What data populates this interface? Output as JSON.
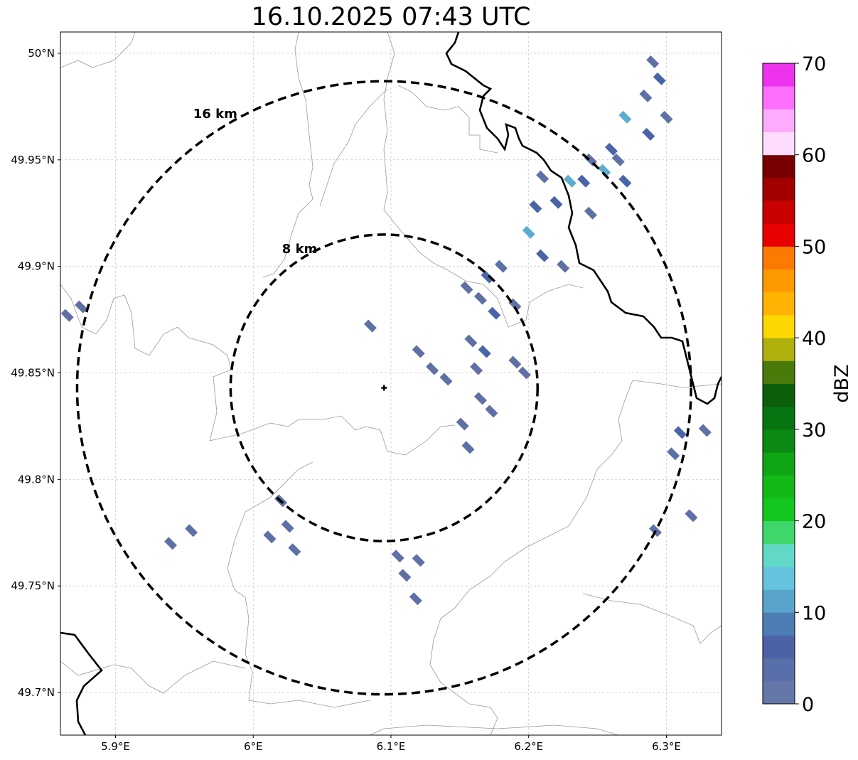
{
  "title": "16.10.2025 07:43 UTC",
  "map": {
    "lon_range": [
      5.86,
      6.34
    ],
    "lat_range": [
      49.68,
      50.01
    ],
    "lat_ticks": [
      {
        "value": 50.0,
        "label": "50°N"
      },
      {
        "value": 49.95,
        "label": "49.95°N"
      },
      {
        "value": 49.9,
        "label": "49.9°N"
      },
      {
        "value": 49.85,
        "label": "49.85°N"
      },
      {
        "value": 49.8,
        "label": "49.8°N"
      },
      {
        "value": 49.75,
        "label": "49.75°N"
      },
      {
        "value": 49.7,
        "label": "49.7°N"
      }
    ],
    "lon_ticks": [
      {
        "value": 5.9,
        "label": "5.9°E"
      },
      {
        "value": 6.0,
        "label": "6°E"
      },
      {
        "value": 6.1,
        "label": "6.1°E"
      },
      {
        "value": 6.2,
        "label": "6.2°E"
      },
      {
        "value": 6.3,
        "label": "6.3°E"
      }
    ],
    "grid": true,
    "center": {
      "lon": 6.095,
      "lat": 49.843
    },
    "range_rings": [
      {
        "radius_km": 8,
        "label": "8 km"
      },
      {
        "radius_km": 16,
        "label": "16 km"
      }
    ],
    "colors": {
      "border": "#000000",
      "admin": "#999999",
      "grid": "#bbbbbb",
      "echo_low": "#5f70a5",
      "echo_mid": "#4a64a8",
      "echo_high": "#5aaed0"
    }
  },
  "echoes": [
    {
      "lon": 6.29,
      "lat": 49.996,
      "level": 1
    },
    {
      "lon": 6.295,
      "lat": 49.988,
      "level": 2
    },
    {
      "lon": 6.285,
      "lat": 49.98,
      "level": 1
    },
    {
      "lon": 6.3,
      "lat": 49.97,
      "level": 1
    },
    {
      "lon": 6.287,
      "lat": 49.962,
      "level": 2
    },
    {
      "lon": 6.27,
      "lat": 49.97,
      "level": 3
    },
    {
      "lon": 6.26,
      "lat": 49.955,
      "level": 2
    },
    {
      "lon": 6.255,
      "lat": 49.945,
      "level": 3
    },
    {
      "lon": 6.245,
      "lat": 49.95,
      "level": 1
    },
    {
      "lon": 6.24,
      "lat": 49.94,
      "level": 2
    },
    {
      "lon": 6.23,
      "lat": 49.94,
      "level": 3
    },
    {
      "lon": 6.22,
      "lat": 49.93,
      "level": 2
    },
    {
      "lon": 6.21,
      "lat": 49.942,
      "level": 1
    },
    {
      "lon": 6.205,
      "lat": 49.928,
      "level": 2
    },
    {
      "lon": 6.2,
      "lat": 49.916,
      "level": 3
    },
    {
      "lon": 6.21,
      "lat": 49.905,
      "level": 2
    },
    {
      "lon": 6.225,
      "lat": 49.9,
      "level": 1
    },
    {
      "lon": 6.245,
      "lat": 49.925,
      "level": 1
    },
    {
      "lon": 6.265,
      "lat": 49.95,
      "level": 1
    },
    {
      "lon": 6.27,
      "lat": 49.94,
      "level": 2
    },
    {
      "lon": 6.18,
      "lat": 49.9,
      "level": 1
    },
    {
      "lon": 6.17,
      "lat": 49.895,
      "level": 2
    },
    {
      "lon": 6.165,
      "lat": 49.885,
      "level": 1
    },
    {
      "lon": 6.155,
      "lat": 49.89,
      "level": 1
    },
    {
      "lon": 6.175,
      "lat": 49.878,
      "level": 2
    },
    {
      "lon": 6.19,
      "lat": 49.882,
      "level": 1
    },
    {
      "lon": 6.158,
      "lat": 49.865,
      "level": 1
    },
    {
      "lon": 6.168,
      "lat": 49.86,
      "level": 2
    },
    {
      "lon": 6.162,
      "lat": 49.852,
      "level": 1
    },
    {
      "lon": 6.19,
      "lat": 49.855,
      "level": 1
    },
    {
      "lon": 6.197,
      "lat": 49.85,
      "level": 1
    },
    {
      "lon": 6.165,
      "lat": 49.838,
      "level": 1
    },
    {
      "lon": 6.173,
      "lat": 49.832,
      "level": 1
    },
    {
      "lon": 6.152,
      "lat": 49.826,
      "level": 1
    },
    {
      "lon": 6.156,
      "lat": 49.815,
      "level": 1
    },
    {
      "lon": 6.14,
      "lat": 49.847,
      "level": 1
    },
    {
      "lon": 6.13,
      "lat": 49.852,
      "level": 1
    },
    {
      "lon": 6.12,
      "lat": 49.86,
      "level": 1
    },
    {
      "lon": 6.085,
      "lat": 49.872,
      "level": 1
    },
    {
      "lon": 6.02,
      "lat": 49.79,
      "level": 1
    },
    {
      "lon": 6.025,
      "lat": 49.778,
      "level": 1
    },
    {
      "lon": 6.012,
      "lat": 49.773,
      "level": 1
    },
    {
      "lon": 6.03,
      "lat": 49.767,
      "level": 1
    },
    {
      "lon": 6.105,
      "lat": 49.764,
      "level": 1
    },
    {
      "lon": 6.11,
      "lat": 49.755,
      "level": 1
    },
    {
      "lon": 6.12,
      "lat": 49.762,
      "level": 1
    },
    {
      "lon": 6.118,
      "lat": 49.744,
      "level": 1
    },
    {
      "lon": 5.94,
      "lat": 49.77,
      "level": 1
    },
    {
      "lon": 5.955,
      "lat": 49.776,
      "level": 1
    },
    {
      "lon": 5.865,
      "lat": 49.877,
      "level": 1
    },
    {
      "lon": 5.875,
      "lat": 49.881,
      "level": 1
    },
    {
      "lon": 6.31,
      "lat": 49.822,
      "level": 2
    },
    {
      "lon": 6.328,
      "lat": 49.823,
      "level": 1
    },
    {
      "lon": 6.305,
      "lat": 49.812,
      "level": 1
    },
    {
      "lon": 6.318,
      "lat": 49.783,
      "level": 1
    },
    {
      "lon": 6.292,
      "lat": 49.776,
      "level": 1
    }
  ],
  "colorbar": {
    "label": "dBZ",
    "min": 0,
    "max": 70,
    "ticks": [
      "0",
      "10",
      "20",
      "30",
      "40",
      "50",
      "60",
      "70"
    ],
    "colors": [
      "#6576a8",
      "#596fa9",
      "#4b62a6",
      "#4d7db4",
      "#5aa3ca",
      "#65c3de",
      "#62d8c6",
      "#3fd76b",
      "#13c71e",
      "#12b917",
      "#0fa514",
      "#0b8a13",
      "#077311",
      "#0a5e0c",
      "#4a7a0a",
      "#afb00b",
      "#fed702",
      "#feb302",
      "#fd9a02",
      "#fd7a02",
      "#e80000",
      "#c80000",
      "#a20000",
      "#770000",
      "#fedcfe",
      "#fdacfd",
      "#fd70fd",
      "#ee33ee"
    ]
  }
}
